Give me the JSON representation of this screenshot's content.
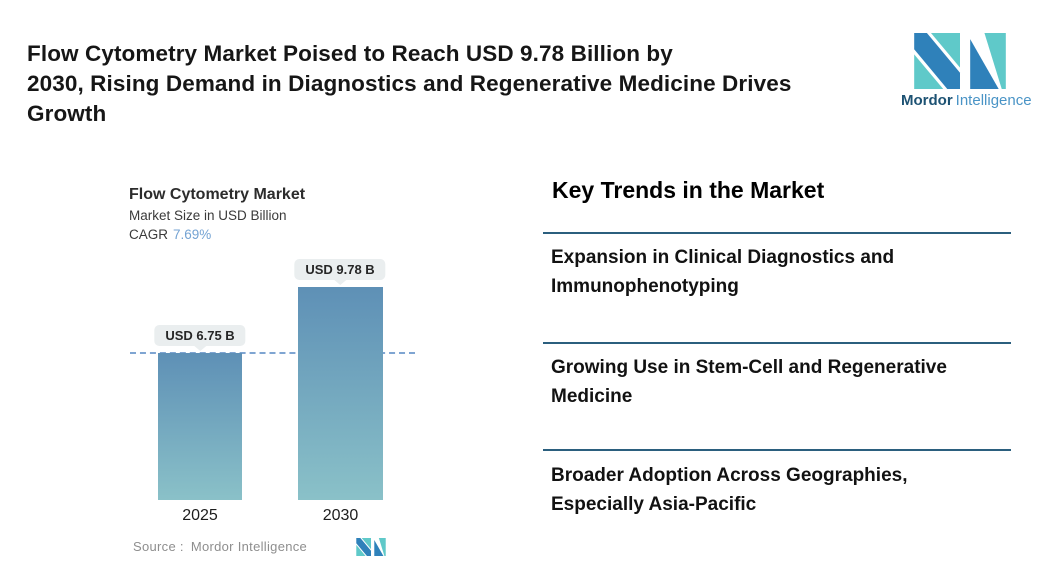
{
  "colors": {
    "logo-teal": "#5fc9c9",
    "logo-blue": "#2f81ba",
    "logo-dark-blue": "#1d5273",
    "logo-light-blue": "#4a94c6",
    "bar-top": "#5e90b6",
    "bar-bottom": "#8ac1c8",
    "dashed-line": "#7fa5d2",
    "badge-bg": "#eaeeef",
    "divider": "#2b5f7e",
    "cagr-color": "#74a3d3"
  },
  "header": {
    "title_lines": [
      "Flow Cytometry Market Poised to Reach USD 9.78 Billion by",
      "2030, Rising Demand in Diagnostics and Regenerative Medicine Drives",
      "Growth"
    ]
  },
  "brand": {
    "name_bold": "Mordor",
    "name_regular": "Intelligence"
  },
  "chart": {
    "title": "Flow Cytometry Market",
    "subtitle": "Market Size in USD Billion",
    "cagr_label": "CAGR",
    "cagr_value": "7.69%",
    "source_label": "Source :",
    "source_value": "Mordor Intelligence"
  },
  "chart_data": {
    "type": "bar",
    "title": "Flow Cytometry Market",
    "ylabel": "Market Size in USD Billion",
    "cagr": "7.69%",
    "categories": [
      "2025",
      "2030"
    ],
    "values": [
      6.75,
      9.78
    ],
    "value_labels": [
      "USD 6.75 B",
      "USD 9.78 B"
    ],
    "ylim": [
      0,
      9.78
    ],
    "grid": false,
    "legend": "none",
    "reference_line": {
      "value": 6.75,
      "style": "dashed"
    },
    "source": "Mordor Intelligence"
  },
  "trends": {
    "heading": "Key Trends in the Market",
    "items": [
      {
        "line1": "Expansion in Clinical Diagnostics and",
        "line2": "Immunophenotyping"
      },
      {
        "line1": "Growing Use in Stem-Cell and Regenerative",
        "line2": "Medicine"
      },
      {
        "line1": "Broader Adoption Across Geographies,",
        "line2": "Especially Asia-Pacific"
      }
    ]
  }
}
